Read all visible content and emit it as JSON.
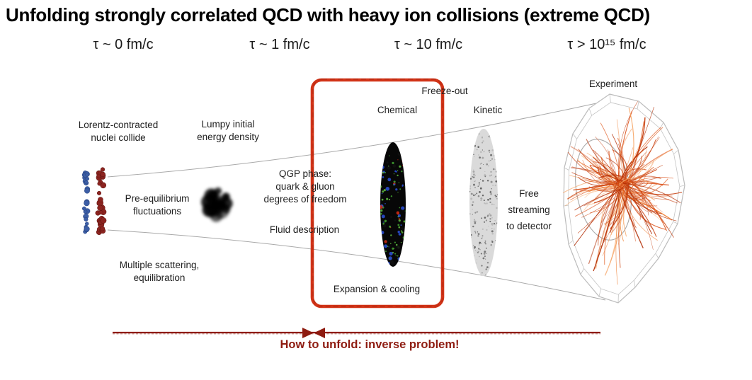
{
  "title": "Unfolding strongly correlated QCD with heavy ion collisions (extreme QCD)",
  "timeline": [
    "τ ~ 0 fm/c",
    "τ ~ 1 fm/c",
    "τ ~ 10 fm/c",
    "τ > 10¹⁵ fm/c"
  ],
  "stages": {
    "lorentz": "Lorentz-contracted\nnuclei collide",
    "lumpy": "Lumpy initial\nenergy density",
    "pre_equilibrium": "Pre-equilibrium\nfluctuations",
    "multiple_scattering": "Multiple scattering,\nequilibration",
    "qgp": "QGP phase:\nquark & gluon\ndegrees of freedom",
    "fluid": "Fluid description",
    "expansion": "Expansion & cooling",
    "chemical": "Chemical",
    "freeze_out": "Freeze-out",
    "kinetic": "Kinetic",
    "free_streaming": "Free\nstreaming\nto detector",
    "experiment": "Experiment"
  },
  "unfold_note": "How to unfold: inverse problem!",
  "colors": {
    "highlight_box_red": "#d23418",
    "annotation_dark_red": "#8e1b10",
    "track_orange": "#e05a1e",
    "nuclei_blue": "#3c5ea6",
    "nuclei_dark_red": "#8c2420",
    "qgp_green": "#3f9b30",
    "qgp_blue": "#2b4fd0",
    "qgp_red": "#c32813"
  }
}
